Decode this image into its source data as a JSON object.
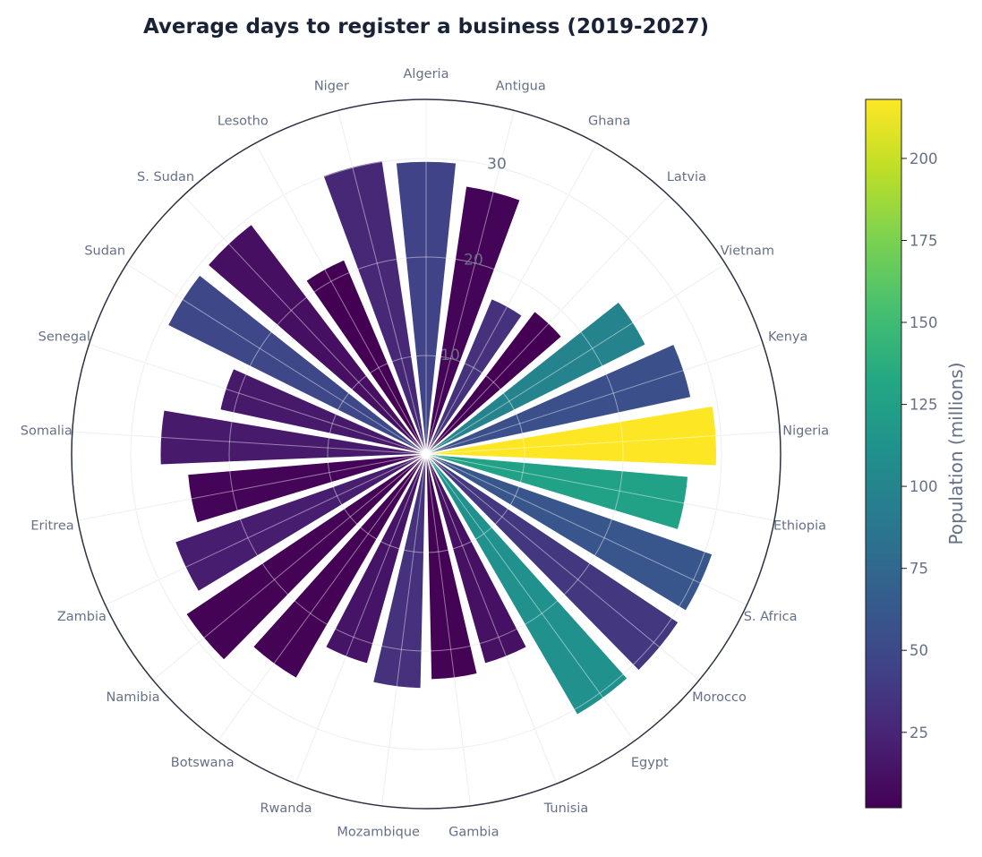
{
  "chart_data": {
    "type": "polar-bar",
    "title": "Average days to register a business (2019-2027)",
    "categories": [
      "Algeria",
      "Antigua",
      "Ghana",
      "Latvia",
      "Vietnam",
      "Kenya",
      "Nigeria",
      "Ethiopia",
      "S. Africa",
      "Morocco",
      "Egypt",
      "Tunisia",
      "Gambia",
      "Mozambique",
      "Rwanda",
      "Botswana",
      "Namibia",
      "Zambia",
      "Eritrea",
      "Somalia",
      "Senegal",
      "Sudan",
      "S. Sudan",
      "Lesotho",
      "Niger"
    ],
    "values": [
      29.7,
      27.5,
      17.1,
      18.2,
      24.9,
      27.5,
      29.5,
      26.7,
      30.8,
      30.8,
      30.6,
      22.1,
      22.9,
      23.8,
      22.1,
      26.3,
      29.3,
      27.0,
      24.3,
      27.0,
      21.4,
      29.3,
      29.3,
      21.4,
      30.1
    ],
    "population_millions": [
      45,
      4,
      33,
      2,
      98,
      55,
      218,
      126,
      60,
      37,
      111,
      12,
      3,
      33,
      14,
      3,
      3,
      20,
      4,
      18,
      17,
      48,
      11,
      2,
      27
    ],
    "radial_ticks": [
      "10",
      "20",
      "30"
    ],
    "rlim": [
      0,
      36
    ],
    "grid": true,
    "colorbar": {
      "label": "Population (millions)",
      "range": [
        2,
        218
      ],
      "ticks": [
        25,
        50,
        75,
        100,
        125,
        150,
        175,
        200
      ],
      "tick_labels": [
        "25",
        "50",
        "75",
        "100",
        "125",
        "150",
        "175",
        "200"
      ],
      "colormap": "viridis"
    }
  }
}
